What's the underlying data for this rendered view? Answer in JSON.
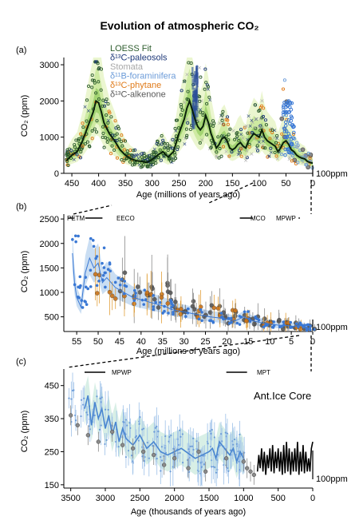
{
  "title": "Evolution of atmospheric CO₂",
  "chart_data": [
    {
      "panel": "(a)",
      "type": "line",
      "xlabel": "Age (millions of years ago)",
      "ylabel": "CO₂ (ppm)",
      "xlim": [
        465,
        0
      ],
      "ylim": [
        0,
        3200
      ],
      "xticks": [
        450,
        400,
        350,
        300,
        250,
        200,
        150,
        100,
        50,
        0
      ],
      "yticks": [
        0,
        1000,
        2000,
        3000
      ],
      "scale_bar": "100ppm",
      "legend": [
        {
          "name": "LOESS Fit",
          "color": "#2e5d2e"
        },
        {
          "name": "δ¹³C-paleosols",
          "color": "#1f3a7a"
        },
        {
          "name": "Stomata",
          "color": "#a8a8a8"
        },
        {
          "name": "δ¹¹B-foraminifera",
          "color": "#6b9bd8"
        },
        {
          "name": "δ¹³C-phytane",
          "color": "#e07b1a"
        },
        {
          "name": "δ¹³C-alkenone",
          "color": "#595959"
        }
      ],
      "series": [
        {
          "name": "LOESS Fit",
          "x": [
            460,
            450,
            440,
            430,
            420,
            410,
            405,
            400,
            395,
            390,
            380,
            370,
            360,
            350,
            340,
            330,
            320,
            310,
            300,
            290,
            280,
            270,
            260,
            250,
            240,
            235,
            230,
            225,
            220,
            215,
            210,
            205,
            200,
            195,
            190,
            185,
            180,
            175,
            170,
            165,
            160,
            155,
            150,
            145,
            140,
            135,
            130,
            125,
            120,
            115,
            110,
            105,
            100,
            95,
            90,
            85,
            80,
            75,
            70,
            65,
            60,
            55,
            50,
            45,
            40,
            35,
            30,
            25,
            20,
            15,
            10,
            5,
            0
          ],
          "y": [
            350,
            500,
            600,
            900,
            1300,
            1700,
            2000,
            1950,
            1700,
            1400,
            1100,
            900,
            650,
            500,
            400,
            350,
            330,
            300,
            380,
            500,
            600,
            450,
            600,
            1100,
            1500,
            1800,
            2000,
            1750,
            1500,
            1300,
            1200,
            1300,
            1600,
            1400,
            1100,
            900,
            700,
            800,
            950,
            1000,
            900,
            700,
            650,
            700,
            800,
            850,
            750,
            700,
            900,
            1000,
            1100,
            1050,
            1000,
            1200,
            1000,
            900,
            850,
            800,
            750,
            600,
            700,
            850,
            900,
            800,
            650,
            600,
            500,
            450,
            420,
            400,
            330,
            300,
            280
          ]
        }
      ]
    },
    {
      "panel": "(b)",
      "type": "scatter",
      "xlabel": "Age (millions of years ago)",
      "ylabel": "CO₂ (ppm)",
      "xlim": [
        58,
        0
      ],
      "ylim": [
        200,
        2600
      ],
      "xticks": [
        55,
        50,
        45,
        40,
        35,
        30,
        25,
        20,
        15,
        10,
        5,
        0
      ],
      "yticks": [
        500,
        1000,
        1500,
        2000,
        2500
      ],
      "scale_bar": "100ppm",
      "annotations": [
        "PETM",
        "EECO",
        "MCO",
        "MPWP"
      ],
      "series": [
        {
          "name": "δ¹¹B-foraminifera",
          "x": [
            56,
            55.5,
            55,
            54,
            53,
            52,
            51,
            50,
            49,
            48,
            46,
            44,
            42,
            40,
            38,
            36,
            34,
            33,
            30,
            27,
            24,
            22,
            20,
            18,
            16,
            14,
            12,
            10,
            8,
            6,
            4,
            3,
            2,
            1
          ],
          "y": [
            1800,
            1200,
            900,
            700,
            1400,
            1700,
            1500,
            1600,
            1200,
            1300,
            1100,
            1000,
            900,
            850,
            800,
            750,
            700,
            650,
            600,
            550,
            500,
            480,
            450,
            420,
            500,
            420,
            380,
            350,
            330,
            320,
            300,
            350,
            280,
            260
          ]
        },
        {
          "name": "δ¹³C-alkenone",
          "x": [
            45,
            42,
            40,
            38,
            36,
            34,
            32,
            30,
            28,
            26,
            24,
            22,
            20,
            18,
            16,
            14,
            12,
            10,
            8,
            6,
            4,
            2
          ],
          "y": [
            1100,
            900,
            1000,
            850,
            950,
            800,
            700,
            650,
            600,
            550,
            600,
            500,
            450,
            480,
            420,
            400,
            380,
            350,
            300,
            280,
            300,
            250
          ]
        },
        {
          "name": "δ¹³C-phytane",
          "x": [
            52,
            48,
            44,
            40,
            36,
            32,
            28,
            24,
            20,
            16,
            12,
            8,
            5
          ],
          "y": [
            1200,
            1000,
            900,
            800,
            750,
            650,
            600,
            550,
            500,
            450,
            400,
            350,
            300
          ]
        }
      ]
    },
    {
      "panel": "(c)",
      "type": "line",
      "xlabel": "Age (thousands of years ago)",
      "ylabel": "CO₂ (ppm)",
      "xlim": [
        3600,
        0
      ],
      "ylim": [
        140,
        500
      ],
      "xticks": [
        3500,
        3000,
        2500,
        2000,
        1500,
        1000,
        500,
        0
      ],
      "yticks": [
        150,
        250,
        350,
        450
      ],
      "scale_bar": "100ppm",
      "annotations": [
        "MPWP",
        "MPT",
        "Ant.Ice Core"
      ],
      "series": [
        {
          "name": "δ¹¹B-foraminifera",
          "x": [
            3300,
            3250,
            3200,
            3150,
            3100,
            3050,
            3000,
            2950,
            2900,
            2850,
            2800,
            2750,
            2700,
            2600,
            2500,
            2400,
            2300,
            2200,
            2100,
            1900,
            1700,
            1500,
            1450,
            1400,
            1350,
            1200,
            1150,
            1100,
            1050,
            1000
          ],
          "y": [
            380,
            420,
            330,
            400,
            350,
            380,
            320,
            360,
            300,
            340,
            280,
            320,
            290,
            270,
            300,
            260,
            280,
            250,
            240,
            260,
            230,
            250,
            260,
            230,
            280,
            240,
            260,
            220,
            250,
            230
          ]
        },
        {
          "name": "Ant.Ice Core",
          "x": [
            800,
            780,
            760,
            740,
            720,
            700,
            680,
            660,
            640,
            620,
            600,
            580,
            560,
            540,
            520,
            500,
            480,
            460,
            440,
            420,
            400,
            380,
            360,
            340,
            320,
            300,
            280,
            260,
            240,
            220,
            200,
            180,
            160,
            140,
            120,
            100,
            80,
            60,
            40,
            20,
            0
          ],
          "y": [
            190,
            240,
            200,
            260,
            190,
            250,
            180,
            240,
            200,
            260,
            190,
            270,
            185,
            250,
            200,
            260,
            190,
            250,
            180,
            270,
            185,
            280,
            190,
            260,
            180,
            250,
            190,
            260,
            190,
            280,
            180,
            250,
            190,
            270,
            185,
            250,
            190,
            230,
            190,
            260,
            280
          ]
        },
        {
          "name": "δ¹³C-alkenone",
          "x": [
            3500,
            3400,
            3250,
            3100,
            2900,
            2750,
            2600,
            2450,
            2300,
            2150,
            2000,
            1800,
            1650,
            1550,
            1250,
            1000,
            950,
            900,
            850
          ],
          "y": [
            360,
            330,
            300,
            280,
            310,
            270,
            260,
            250,
            240,
            210,
            230,
            200,
            250,
            190,
            230,
            220,
            200,
            190,
            180
          ]
        }
      ]
    }
  ]
}
